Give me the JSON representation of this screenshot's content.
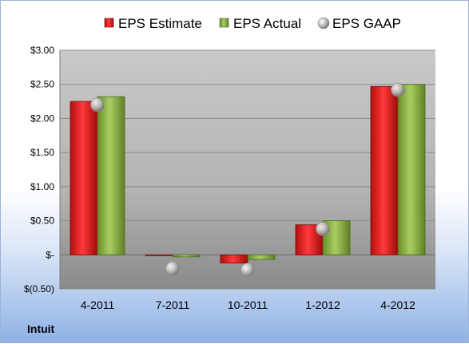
{
  "company": "Intuit",
  "chart_data": {
    "type": "bar",
    "categories": [
      "4-2011",
      "7-2011",
      "10-2011",
      "1-2012",
      "4-2012"
    ],
    "series": [
      {
        "name": "EPS Estimate",
        "kind": "bar",
        "color": "#e02020",
        "values": [
          2.25,
          0.0,
          -0.12,
          0.44,
          2.47
        ]
      },
      {
        "name": "EPS Actual",
        "kind": "bar",
        "color": "#8db04a",
        "values": [
          2.32,
          -0.03,
          -0.07,
          0.5,
          2.5
        ]
      },
      {
        "name": "EPS GAAP",
        "kind": "marker",
        "color": "#b0b0b0",
        "values": [
          2.2,
          -0.2,
          -0.22,
          0.38,
          2.42
        ]
      }
    ],
    "yticks": [
      {
        "value": 3.0,
        "label": "$3.00"
      },
      {
        "value": 2.5,
        "label": "$2.50"
      },
      {
        "value": 2.0,
        "label": "$2.00"
      },
      {
        "value": 1.5,
        "label": "$1.50"
      },
      {
        "value": 1.0,
        "label": "$1.00"
      },
      {
        "value": 0.5,
        "label": "$0.50"
      },
      {
        "value": 0.0,
        "label": "$-"
      },
      {
        "value": -0.5,
        "label": "$(0.50)"
      }
    ],
    "ylim": [
      -0.5,
      3.0
    ],
    "grid": true,
    "legend": "top"
  }
}
